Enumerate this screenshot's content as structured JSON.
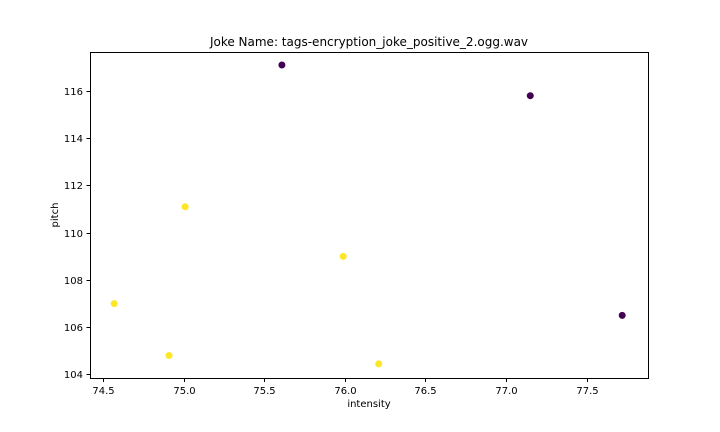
{
  "chart_data": {
    "type": "scatter",
    "title": "Joke Name: tags-encryption_joke_positive_2.ogg.wav",
    "xlabel": "intensity",
    "ylabel": "pitch",
    "xlim": [
      74.42,
      77.88
    ],
    "ylim": [
      103.85,
      117.65
    ],
    "grid": false,
    "x_ticks": [
      74.5,
      75.0,
      75.5,
      76.0,
      76.5,
      77.0,
      77.5
    ],
    "x_tick_labels": [
      "74.5",
      "75.0",
      "75.5",
      "76.0",
      "76.5",
      "77.0",
      "77.5"
    ],
    "y_ticks": [
      104,
      106,
      108,
      110,
      112,
      114,
      116
    ],
    "y_tick_labels": [
      "104",
      "106",
      "108",
      "110",
      "112",
      "114",
      "116"
    ],
    "colors": {
      "class_a": "#440154",
      "class_b": "#fde725"
    },
    "points": [
      {
        "x": 75.61,
        "y": 117.1,
        "color": "#440154"
      },
      {
        "x": 77.15,
        "y": 115.8,
        "color": "#440154"
      },
      {
        "x": 77.72,
        "y": 106.5,
        "color": "#440154"
      },
      {
        "x": 75.01,
        "y": 111.1,
        "color": "#fde725"
      },
      {
        "x": 74.57,
        "y": 107.0,
        "color": "#fde725"
      },
      {
        "x": 75.99,
        "y": 109.0,
        "color": "#fde725"
      },
      {
        "x": 74.91,
        "y": 104.8,
        "color": "#fde725"
      },
      {
        "x": 76.21,
        "y": 104.45,
        "color": "#fde725"
      }
    ]
  }
}
